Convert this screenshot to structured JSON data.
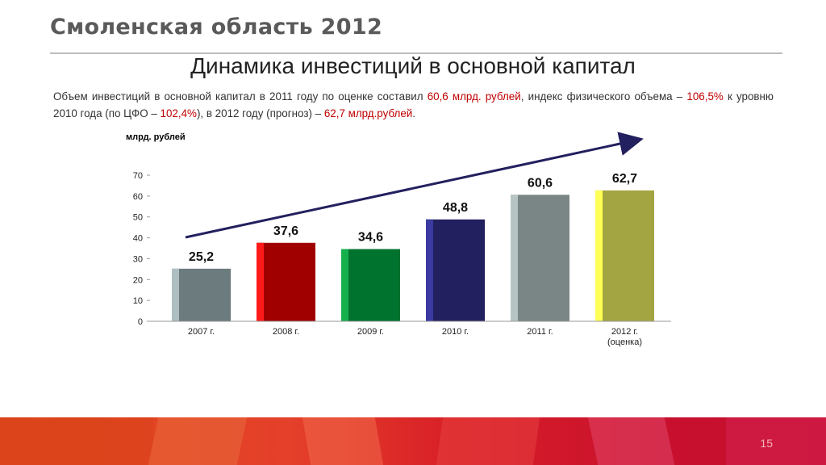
{
  "header": {
    "region_title": "Смоленская область 2012",
    "slide_title": "Динамика инвестиций в основной капитал"
  },
  "summary": {
    "p1": "Объем инвестиций в основной капитал в 2011 году по оценке составил ",
    "v1": "60,6 млрд. рублей",
    "p2": ", индекс физического объема – ",
    "v2": "106,5%",
    "p3": " к уровню 2010 года (по ЦФО – ",
    "v3": "102,4%",
    "p4": "), в 2012 году (прогноз) – ",
    "v4": "62,7 млрд.рублей",
    "p5": "."
  },
  "chart_data": {
    "type": "bar",
    "ylabel": "млрд. рублей",
    "ylim": [
      0,
      70
    ],
    "yticks": [
      "0",
      "10",
      "20",
      "30",
      "40",
      "50",
      "60",
      "70"
    ],
    "categories": [
      "2007 г.",
      "2008 г.",
      "2009 г.",
      "2010 г.",
      "2011 г.",
      "2012 г."
    ],
    "category_sublabels": [
      "",
      "",
      "",
      "",
      "",
      "(оценка)"
    ],
    "values": [
      25.2,
      37.6,
      34.6,
      48.8,
      60.6,
      62.7
    ],
    "value_labels": [
      "25,2",
      "37,6",
      "34,6",
      "48,8",
      "60,6",
      "62,7"
    ],
    "colors": [
      "#6b7b7e",
      "#a00000",
      "#00732f",
      "#22205e",
      "#7a8585",
      "#a3a442"
    ],
    "highlight_colors": [
      "#aebfc2",
      "#ff1a1a",
      "#16b04c",
      "#3a3aa0",
      "#b7c4c4",
      "#ffff55"
    ],
    "trend_arrow": true,
    "arrow_color": "#22205e",
    "grid": false
  },
  "footer": {
    "page_number": "15",
    "colors": [
      "#e0481d",
      "#e4402a",
      "#d81f27",
      "#c8102e"
    ]
  }
}
